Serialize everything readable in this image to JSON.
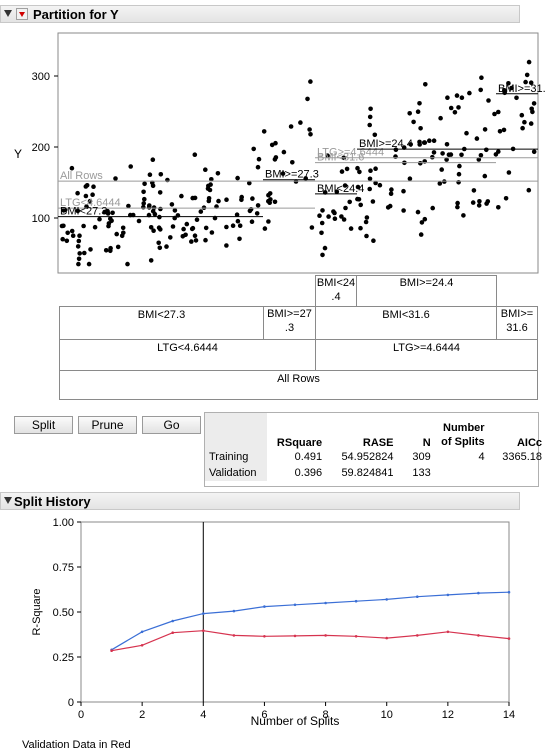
{
  "partition": {
    "title": "Partition for Y",
    "y_axis_label": "Y",
    "y_ticks": [
      "100",
      "200",
      "300"
    ],
    "level_labels": [
      {
        "text": "All Rows",
        "tone": "gray",
        "y": 152
      },
      {
        "text": "LTG<4.6444",
        "tone": "gray",
        "y": 114
      },
      {
        "text": "BMI<27.3",
        "tone": "black",
        "y": 102
      },
      {
        "text": "BMI>=27.3",
        "tone": "black",
        "y": 154
      },
      {
        "text": "BMI<24.4",
        "tone": "black",
        "y": 134
      },
      {
        "text": "LTG>=4.6444",
        "tone": "gray",
        "y": 185
      },
      {
        "text": "BMI<31.6",
        "tone": "gray",
        "y": 178
      },
      {
        "text": "BMI>=24.4",
        "tone": "black",
        "y": 197
      },
      {
        "text": "BMI>=31.6",
        "tone": "black",
        "y": 275
      }
    ],
    "tree": {
      "row1": [
        {
          "text": "BMI<24\n.4",
          "key": "bmi-lt-24-4"
        },
        {
          "text": "BMI>=24.4",
          "key": "bmi-ge-24-4"
        }
      ],
      "row2": [
        {
          "text": "BMI<27.3",
          "key": "bmi-lt-27-3"
        },
        {
          "text": "BMI>=27\n.3",
          "key": "bmi-ge-27-3"
        },
        {
          "text": "BMI<31.6",
          "key": "bmi-lt-31-6"
        },
        {
          "text": "BMI>=\n31.6",
          "key": "bmi-ge-31-6"
        }
      ],
      "row3": [
        {
          "text": "LTG<4.6444",
          "key": "ltg-lt"
        },
        {
          "text": "LTG>=4.6444",
          "key": "ltg-ge"
        }
      ],
      "root": "All Rows"
    }
  },
  "buttons": {
    "split": "Split",
    "prune": "Prune",
    "go": "Go"
  },
  "stats_table": {
    "headers": [
      "",
      "RSquare",
      "RASE",
      "N",
      "Number\nof Splits",
      "AICc"
    ],
    "rows": [
      [
        "Training",
        "0.491",
        "54.952824",
        "309",
        "4",
        "3365.18"
      ],
      [
        "Validation",
        "0.396",
        "59.824841",
        "133",
        "",
        ""
      ]
    ]
  },
  "split_history": {
    "title": "Split History",
    "footer_note": "Validation Data in Red",
    "colors": {
      "training": "#3b6fd6",
      "validation": "#d6334f"
    }
  },
  "chart_data": {
    "type": "line",
    "xlabel": "Number of Splits",
    "ylabel": "R-Square",
    "xlim": [
      0,
      14
    ],
    "ylim": [
      0,
      1
    ],
    "x_ticks": [
      "0",
      "2",
      "4",
      "6",
      "8",
      "10",
      "12",
      "14"
    ],
    "y_ticks": [
      "0",
      "0.25",
      "0.50",
      "0.75",
      "1.00"
    ],
    "grid": false,
    "reference_line_x": 4,
    "x": [
      1,
      2,
      3,
      4,
      5,
      6,
      7,
      8,
      9,
      10,
      11,
      12,
      13,
      14
    ],
    "series": [
      {
        "key": "training",
        "values": [
          0.29,
          0.39,
          0.45,
          0.491,
          0.505,
          0.53,
          0.54,
          0.55,
          0.56,
          0.57,
          0.585,
          0.595,
          0.605,
          0.61
        ]
      },
      {
        "key": "validation",
        "values": [
          0.285,
          0.315,
          0.385,
          0.396,
          0.37,
          0.365,
          0.367,
          0.37,
          0.365,
          0.355,
          0.37,
          0.39,
          0.37,
          0.352
        ]
      }
    ]
  }
}
